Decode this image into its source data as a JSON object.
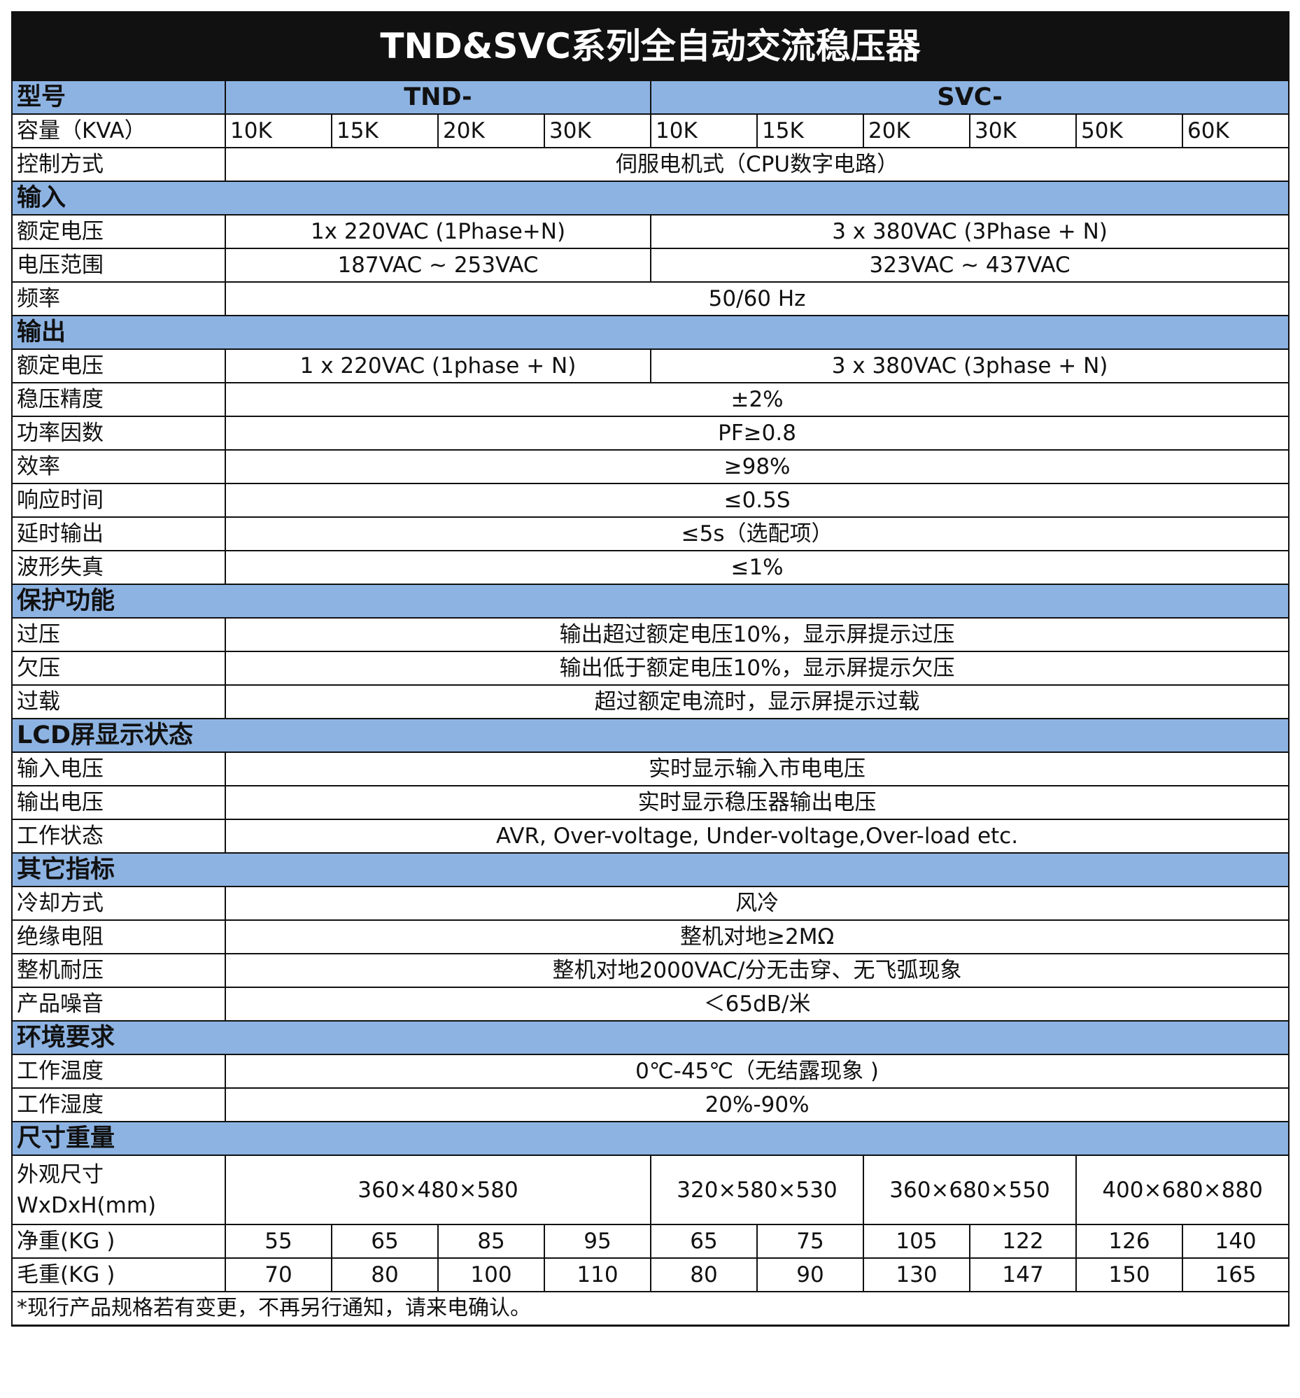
{
  "title": "TND&SVC系列全自动交流稳压器",
  "colors": {
    "header_bg": "#111111",
    "section_bg": "#8db3e2",
    "text": "#111111"
  },
  "rows": [
    {
      "type": "model",
      "label": "型号",
      "cells": [
        {
          "text": "TND-",
          "span": 4
        },
        {
          "text": "SVC-",
          "span": 6
        }
      ]
    },
    {
      "type": "row",
      "label": "容量（KVA）",
      "align": "l",
      "cells": [
        {
          "text": "10K"
        },
        {
          "text": "15K"
        },
        {
          "text": "20K"
        },
        {
          "text": "30K"
        },
        {
          "text": "10K"
        },
        {
          "text": "15K"
        },
        {
          "text": "20K"
        },
        {
          "text": "30K"
        },
        {
          "text": "50K"
        },
        {
          "text": "60K"
        }
      ]
    },
    {
      "type": "row",
      "label": "控制方式",
      "cells": [
        {
          "text": "伺服电机式（CPU数字电路）",
          "span": 10
        }
      ]
    },
    {
      "type": "sec",
      "label": "输入"
    },
    {
      "type": "row",
      "label": "额定电压",
      "cells": [
        {
          "text": "1x 220VAC (1Phase+N)",
          "span": 4
        },
        {
          "text": "3 x 380VAC (3Phase + N)",
          "span": 6
        }
      ]
    },
    {
      "type": "row",
      "label": "电压范围",
      "cells": [
        {
          "text": "187VAC ~ 253VAC",
          "span": 4
        },
        {
          "text": "323VAC ~ 437VAC",
          "span": 6
        }
      ]
    },
    {
      "type": "row",
      "label": "频率",
      "cells": [
        {
          "text": "50/60 Hz",
          "span": 10
        }
      ]
    },
    {
      "type": "sec",
      "label": "输出"
    },
    {
      "type": "row",
      "label": "额定电压",
      "cells": [
        {
          "text": "1 x 220VAC (1phase + N)",
          "span": 4
        },
        {
          "text": "3 x 380VAC (3phase + N)",
          "span": 6
        }
      ]
    },
    {
      "type": "row",
      "label": "稳压精度",
      "cells": [
        {
          "text": "±2%",
          "span": 10
        }
      ]
    },
    {
      "type": "row",
      "label": "功率因数",
      "cells": [
        {
          "text": "PF≥0.8",
          "span": 10
        }
      ]
    },
    {
      "type": "row",
      "label": "效率",
      "cells": [
        {
          "text": "≥98%",
          "span": 10
        }
      ]
    },
    {
      "type": "row",
      "label": "响应时间",
      "cells": [
        {
          "text": "≤0.5S",
          "span": 10
        }
      ]
    },
    {
      "type": "row",
      "label": "延时输出",
      "cells": [
        {
          "text": "≤5s（选配项）",
          "span": 10
        }
      ]
    },
    {
      "type": "row",
      "label": "波形失真",
      "cells": [
        {
          "text": "≤1%",
          "span": 10
        }
      ]
    },
    {
      "type": "sec",
      "label": "保护功能"
    },
    {
      "type": "row",
      "label": "过压",
      "cells": [
        {
          "text": "输出超过额定电压10%，显示屏提示过压",
          "span": 10
        }
      ]
    },
    {
      "type": "row",
      "label": "欠压",
      "cells": [
        {
          "text": "输出低于额定电压10%，显示屏提示欠压",
          "span": 10
        }
      ]
    },
    {
      "type": "row",
      "label": "过载",
      "cells": [
        {
          "text": "超过额定电流时，显示屏提示过载",
          "span": 10
        }
      ]
    },
    {
      "type": "sec",
      "label": "LCD屏显示状态"
    },
    {
      "type": "row",
      "label": "输入电压",
      "cells": [
        {
          "text": "实时显示输入市电电压",
          "span": 10
        }
      ]
    },
    {
      "type": "row",
      "label": "输出电压",
      "cells": [
        {
          "text": "实时显示稳压器输出电压",
          "span": 10
        }
      ]
    },
    {
      "type": "row",
      "label": "工作状态",
      "cells": [
        {
          "text": "AVR, Over-voltage, Under-voltage,Over-load etc.",
          "span": 10
        }
      ]
    },
    {
      "type": "sec",
      "label": "其它指标"
    },
    {
      "type": "row",
      "label": "冷却方式",
      "cells": [
        {
          "text": "风冷",
          "span": 10
        }
      ]
    },
    {
      "type": "row",
      "label": "绝缘电阻",
      "cells": [
        {
          "text": "整机对地≥2MΩ",
          "span": 10
        }
      ]
    },
    {
      "type": "row",
      "label": "整机耐压",
      "cells": [
        {
          "text": "整机对地2000VAC/分无击穿、无飞弧现象",
          "span": 10
        }
      ]
    },
    {
      "type": "row",
      "label": "产品噪音",
      "cells": [
        {
          "text": "＜65dB/米",
          "span": 10
        }
      ]
    },
    {
      "type": "sec",
      "label": "环境要求"
    },
    {
      "type": "row",
      "label": "工作温度",
      "cells": [
        {
          "text": "0℃-45℃（无结露现象 )",
          "span": 10
        }
      ]
    },
    {
      "type": "row",
      "label": "工作湿度",
      "cells": [
        {
          "text": "20%-90%",
          "span": 10
        }
      ]
    },
    {
      "type": "sec",
      "label": "尺寸重量"
    },
    {
      "type": "tall",
      "label": "外观尺寸\nWxDxH(mm)",
      "cells": [
        {
          "text": "360×480×580",
          "span": 4
        },
        {
          "text": "320×580×530",
          "span": 2
        },
        {
          "text": "360×680×550",
          "span": 2
        },
        {
          "text": "400×680×880",
          "span": 2
        }
      ]
    },
    {
      "type": "row",
      "label": "净重(KG )",
      "cells": [
        {
          "text": "55"
        },
        {
          "text": "65"
        },
        {
          "text": "85"
        },
        {
          "text": "95"
        },
        {
          "text": "65"
        },
        {
          "text": "75"
        },
        {
          "text": "105"
        },
        {
          "text": "122"
        },
        {
          "text": "126"
        },
        {
          "text": "140"
        }
      ]
    },
    {
      "type": "row",
      "label": "毛重(KG )",
      "cells": [
        {
          "text": "70"
        },
        {
          "text": "80"
        },
        {
          "text": "100"
        },
        {
          "text": "110"
        },
        {
          "text": "80"
        },
        {
          "text": "90"
        },
        {
          "text": "130"
        },
        {
          "text": "147"
        },
        {
          "text": "150"
        },
        {
          "text": "165"
        }
      ]
    }
  ],
  "note": "*现行产品规格若有变更，不再另行通知，请来电确认。"
}
